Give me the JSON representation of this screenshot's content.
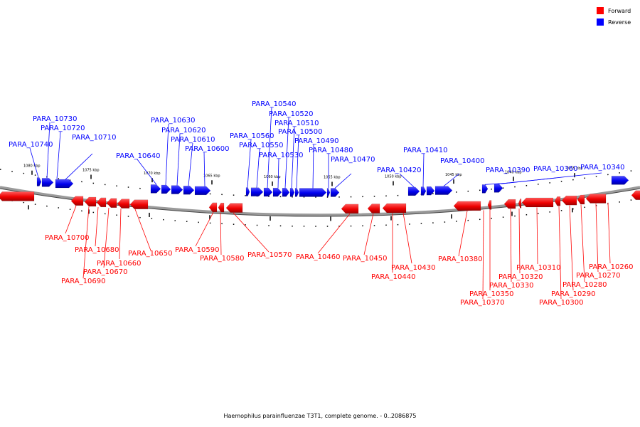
{
  "legend": {
    "forward": {
      "label": "Forward",
      "color": "#ff0000"
    },
    "reverse": {
      "label": "Reverse",
      "color": "#0000ff"
    }
  },
  "caption": "Haemophilus parainfluenzae T3T1, complete genome. - 0..2086875",
  "ticks": [
    "1080 kbp",
    "1075 kbp",
    "1070 kbp",
    "1065 kbp",
    "1060 kbp",
    "1055 kbp",
    "1050 kbp",
    "1045 kbp",
    "1040 kbp",
    "1035 kbp"
  ],
  "reverse_genes": [
    "PARA_10740",
    "PARA_10730",
    "PARA_10720",
    "PARA_10710",
    "PARA_10640",
    "PARA_10630",
    "PARA_10620",
    "PARA_10610",
    "PARA_10600",
    "PARA_10560",
    "PARA_10550",
    "PARA_10540",
    "PARA_10530",
    "PARA_10520",
    "PARA_10510",
    "PARA_10500",
    "PARA_10490",
    "PARA_10480",
    "PARA_10470",
    "PARA_10420",
    "PARA_10410",
    "PARA_10400",
    "PARA_10390",
    "PARA_10360",
    "PARA_10340"
  ],
  "forward_genes": [
    "PARA_10700",
    "PARA_10690",
    "PARA_10680",
    "PARA_10670",
    "PARA_10660",
    "PARA_10650",
    "PARA_10590",
    "PARA_10580",
    "PARA_10570",
    "PARA_10460",
    "PARA_10450",
    "PARA_10440",
    "PARA_10430",
    "PARA_10380",
    "PARA_10370",
    "PARA_10350",
    "PARA_10330",
    "PARA_10320",
    "PARA_10310",
    "PARA_10300",
    "PARA_10290",
    "PARA_10280",
    "PARA_10270",
    "PARA_10260"
  ]
}
